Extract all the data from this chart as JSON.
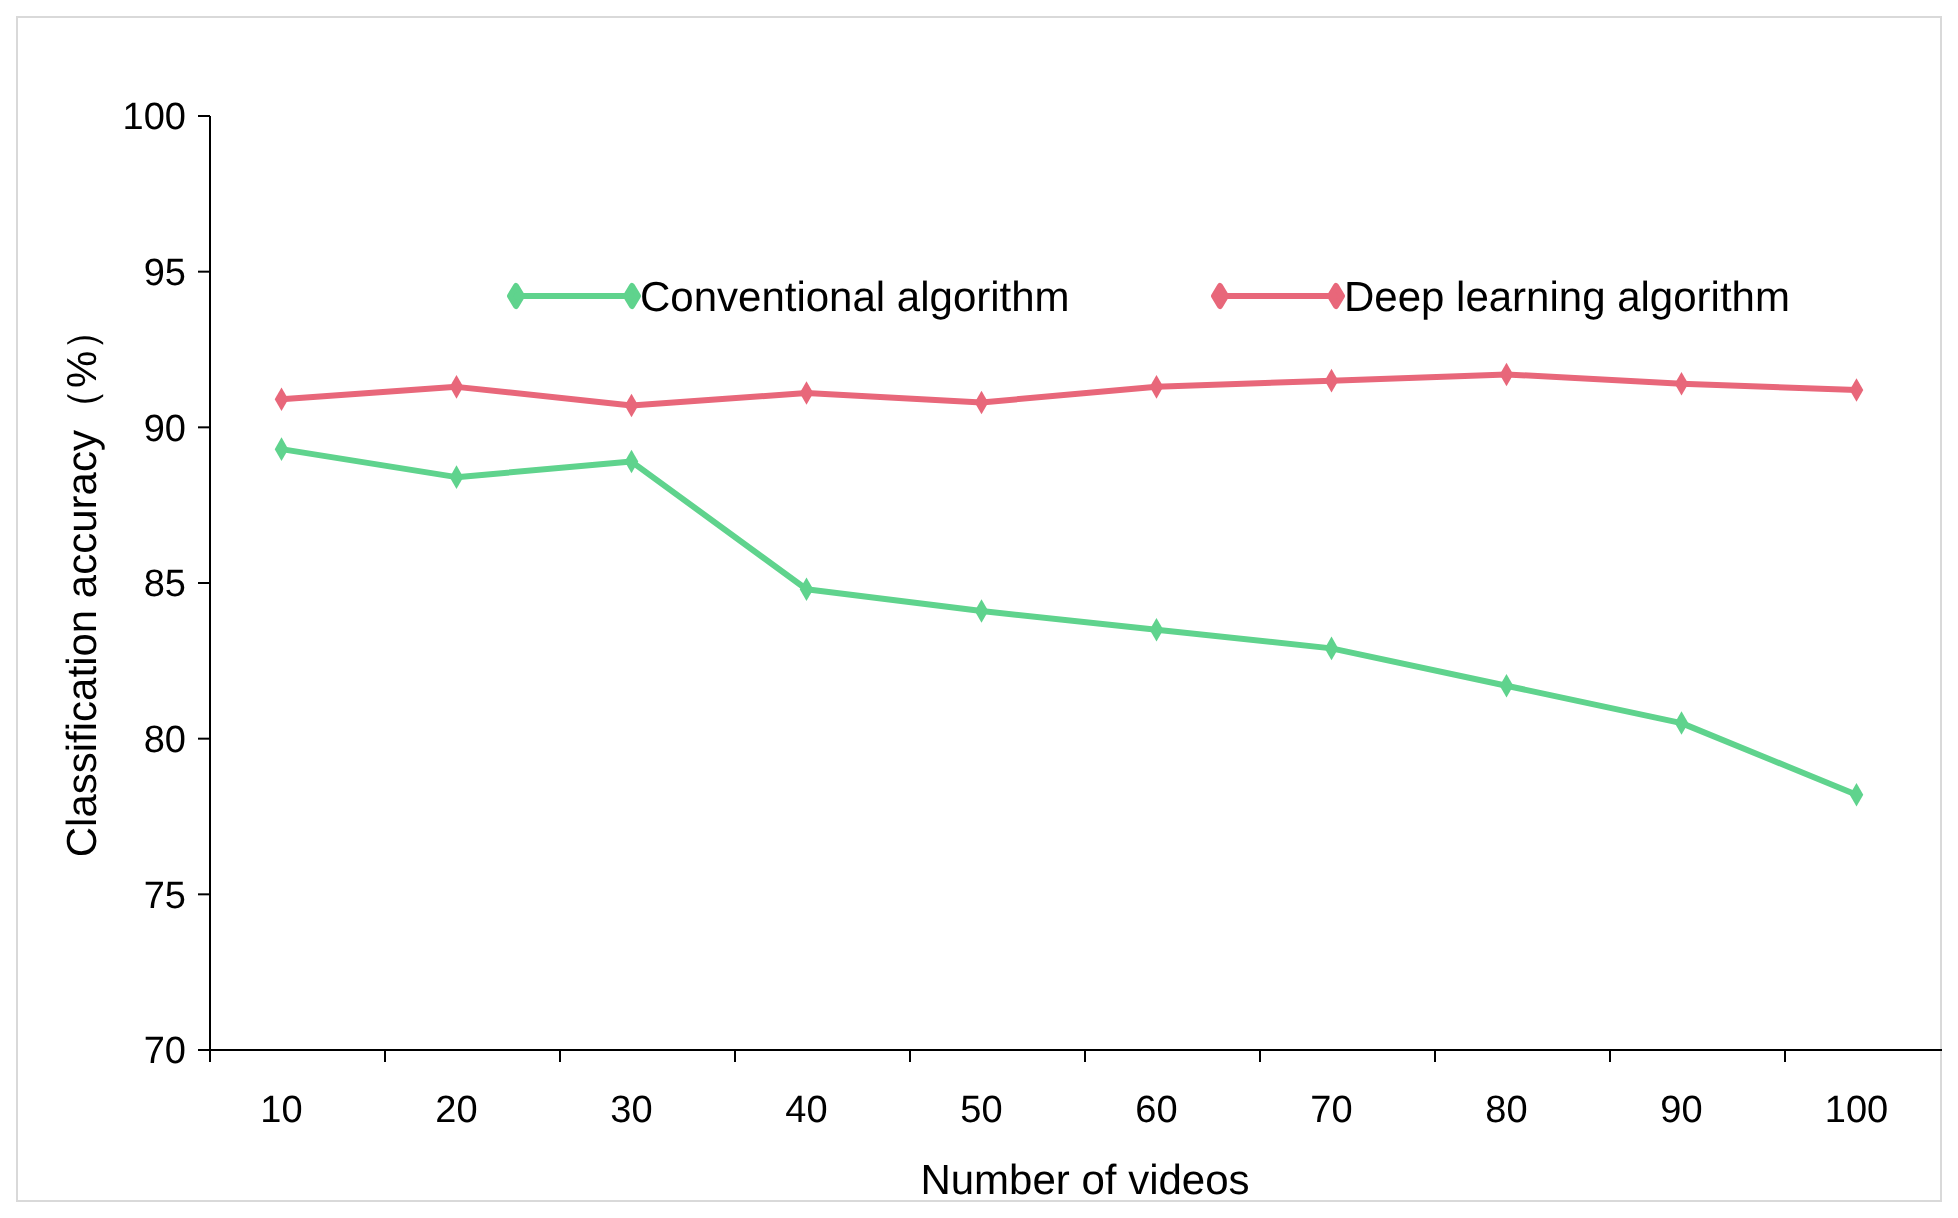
{
  "chart_data": {
    "type": "line",
    "xlabel": "Number of videos",
    "ylabel": "Classification accuracy（%）",
    "categories": [
      "10",
      "20",
      "30",
      "40",
      "50",
      "60",
      "70",
      "80",
      "90",
      "100"
    ],
    "series": [
      {
        "name": "Conventional algorithm",
        "color": "#5fd38d",
        "values": [
          89.3,
          88.4,
          88.9,
          84.8,
          84.1,
          83.5,
          82.9,
          81.7,
          80.5,
          78.2
        ]
      },
      {
        "name": "Deep learning algorithm",
        "color": "#e8677a",
        "values": [
          90.9,
          91.3,
          90.7,
          91.1,
          90.8,
          91.3,
          91.5,
          91.7,
          91.4,
          91.2
        ]
      }
    ],
    "ylim": [
      70,
      100
    ],
    "yticks": [
      70,
      75,
      80,
      85,
      90,
      95,
      100
    ],
    "grid": false,
    "legend": "top",
    "marker": "diamond",
    "line_style": "solid"
  }
}
